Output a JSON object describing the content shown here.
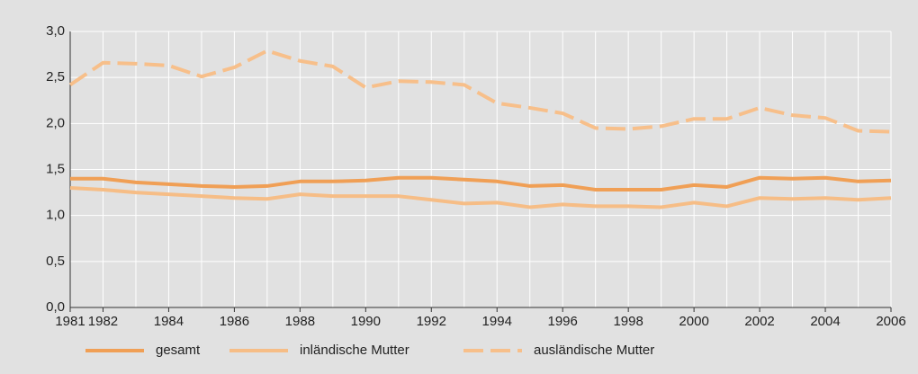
{
  "chart_data": {
    "type": "line",
    "x": [
      1981,
      1982,
      1983,
      1984,
      1985,
      1986,
      1987,
      1988,
      1989,
      1990,
      1991,
      1992,
      1993,
      1994,
      1995,
      1996,
      1997,
      1998,
      1999,
      2000,
      2001,
      2002,
      2003,
      2004,
      2005,
      2006
    ],
    "series": [
      {
        "name": "gesamt",
        "color": "#f09f55",
        "values": [
          1.4,
          1.4,
          1.36,
          1.34,
          1.32,
          1.31,
          1.32,
          1.37,
          1.37,
          1.38,
          1.41,
          1.41,
          1.39,
          1.37,
          1.32,
          1.33,
          1.28,
          1.28,
          1.28,
          1.33,
          1.31,
          1.41,
          1.4,
          1.41,
          1.37,
          1.38
        ]
      },
      {
        "name": "inländische Mutter",
        "color": "#f6bd86",
        "values": [
          1.3,
          1.28,
          1.25,
          1.23,
          1.21,
          1.19,
          1.18,
          1.23,
          1.21,
          1.21,
          1.21,
          1.17,
          1.13,
          1.14,
          1.09,
          1.12,
          1.1,
          1.1,
          1.09,
          1.14,
          1.1,
          1.19,
          1.18,
          1.19,
          1.17,
          1.19
        ]
      },
      {
        "name": "ausländische Mutter",
        "color": "#f7bf8a",
        "dashed": true,
        "values": [
          2.42,
          2.66,
          2.65,
          2.63,
          2.51,
          2.61,
          2.79,
          2.68,
          2.62,
          2.39,
          2.46,
          2.45,
          2.42,
          2.22,
          2.17,
          2.11,
          1.95,
          1.94,
          1.97,
          2.05,
          2.05,
          2.17,
          2.09,
          2.06,
          1.92,
          1.91
        ]
      }
    ],
    "xlim": [
      1981,
      2006
    ],
    "xticks": [
      1981,
      1982,
      1984,
      1986,
      1988,
      1990,
      1992,
      1994,
      1996,
      1998,
      2000,
      2002,
      2004,
      2006
    ],
    "ylim": [
      0,
      3
    ],
    "yticks": [
      {
        "value": 0,
        "label": "0,0"
      },
      {
        "value": 0.5,
        "label": "0,5"
      },
      {
        "value": 1,
        "label": "1,0"
      },
      {
        "value": 1.5,
        "label": "1,5"
      },
      {
        "value": 2,
        "label": "2,0"
      },
      {
        "value": 2.5,
        "label": "2,5"
      },
      {
        "value": 3,
        "label": "3,0"
      }
    ],
    "grid": true,
    "legend": "bottom"
  }
}
